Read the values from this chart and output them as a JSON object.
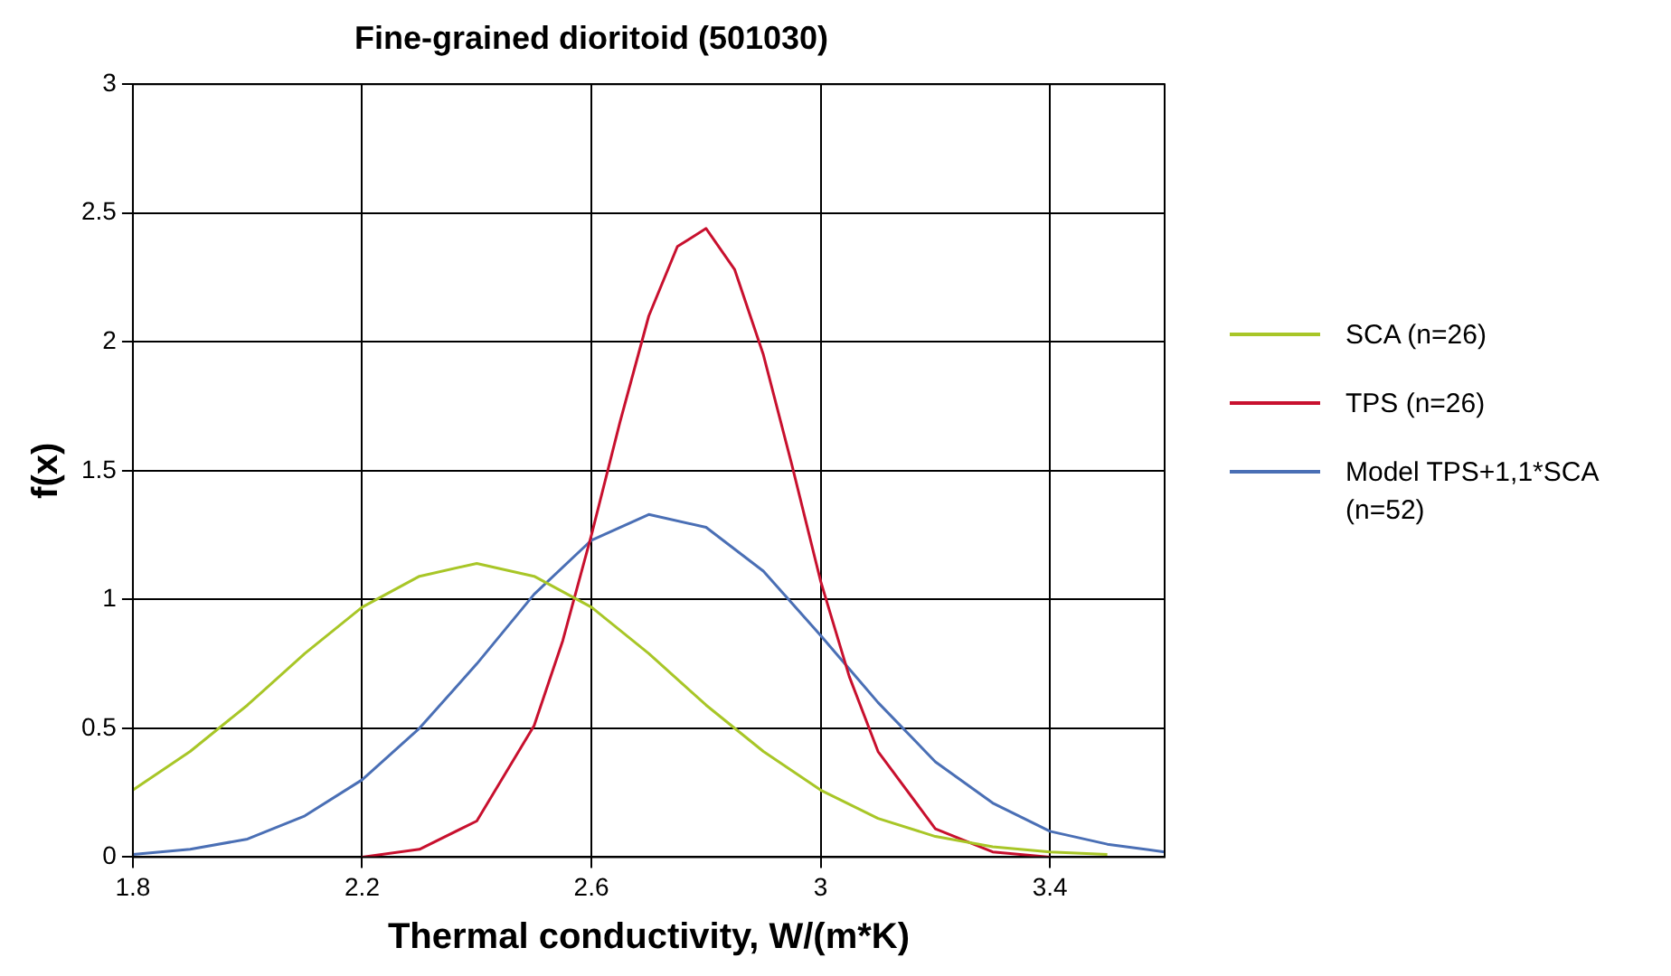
{
  "chart_data": {
    "type": "line",
    "title": "Fine-grained dioritoid (501030)",
    "xlabel": "Thermal conductivity, W/(m*K)",
    "ylabel": "f(x)",
    "xlim": [
      1.8,
      3.6
    ],
    "xticks": [
      1.8,
      2.2,
      2.6,
      3,
      3.4
    ],
    "ylim": [
      0,
      3
    ],
    "yticks": [
      0,
      0.5,
      1,
      1.5,
      2,
      2.5,
      3
    ],
    "grid": true,
    "legend": "right",
    "marker": "none",
    "line_style": "solid",
    "series": [
      {
        "name": "SCA (n=26)",
        "color": "#a8c627",
        "x": [
          1.8,
          1.9,
          2.0,
          2.1,
          2.2,
          2.3,
          2.4,
          2.5,
          2.6,
          2.7,
          2.8,
          2.9,
          3.0,
          3.1,
          3.2,
          3.3,
          3.4,
          3.5
        ],
        "values": [
          0.26,
          0.41,
          0.59,
          0.79,
          0.97,
          1.09,
          1.14,
          1.09,
          0.97,
          0.79,
          0.59,
          0.41,
          0.26,
          0.15,
          0.08,
          0.04,
          0.02,
          0.01
        ]
      },
      {
        "name": "TPS (n=26)",
        "color": "#c8102e",
        "x": [
          2.2,
          2.3,
          2.4,
          2.5,
          2.55,
          2.6,
          2.65,
          2.7,
          2.75,
          2.8,
          2.85,
          2.9,
          2.95,
          3.0,
          3.05,
          3.1,
          3.2,
          3.3,
          3.4
        ],
        "values": [
          0,
          0.03,
          0.14,
          0.51,
          0.84,
          1.25,
          1.69,
          2.1,
          2.37,
          2.44,
          2.28,
          1.95,
          1.52,
          1.07,
          0.7,
          0.41,
          0.11,
          0.02,
          0
        ]
      },
      {
        "name": "Model TPS+1,1*SCA (n=52)",
        "color": "#4a6fb5",
        "x": [
          1.8,
          1.9,
          2.0,
          2.1,
          2.2,
          2.3,
          2.4,
          2.5,
          2.6,
          2.7,
          2.8,
          2.9,
          3.0,
          3.1,
          3.2,
          3.3,
          3.4,
          3.5,
          3.6
        ],
        "values": [
          0.01,
          0.03,
          0.07,
          0.16,
          0.3,
          0.5,
          0.75,
          1.02,
          1.23,
          1.33,
          1.28,
          1.11,
          0.86,
          0.6,
          0.37,
          0.21,
          0.1,
          0.05,
          0.02
        ]
      }
    ]
  }
}
